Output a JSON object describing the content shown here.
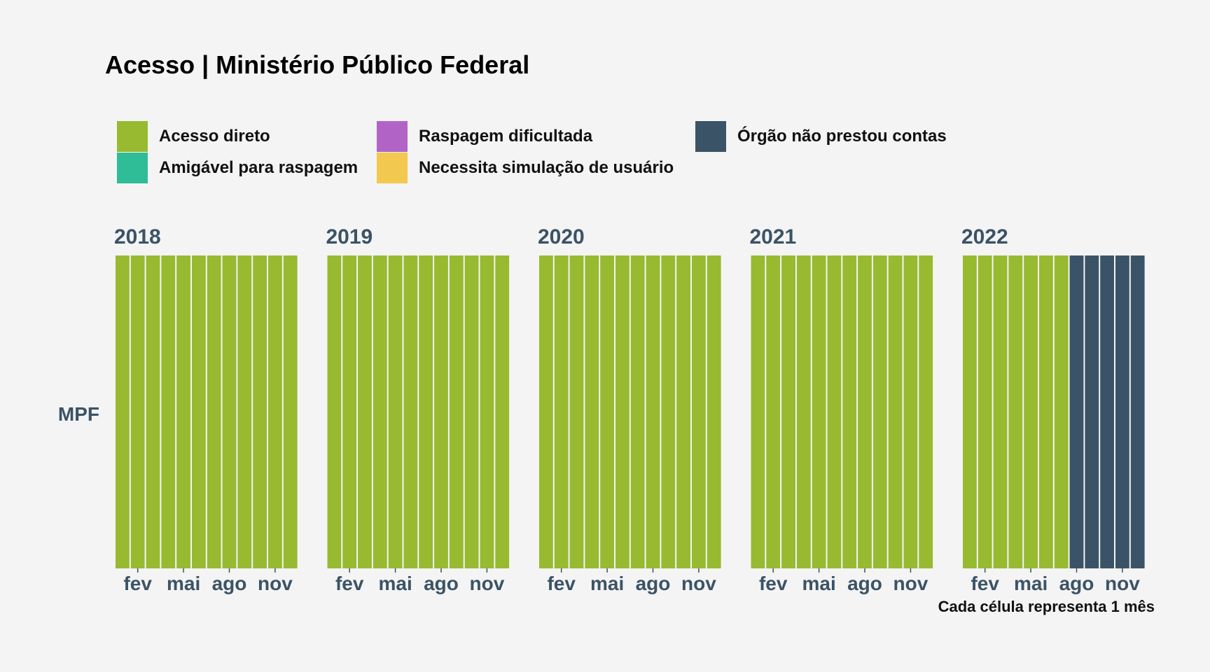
{
  "title": "Acesso | Ministério Público Federal",
  "caption": "Cada célula representa 1 mês",
  "legend": [
    {
      "label": "Acesso direto",
      "color": "#97ba31"
    },
    {
      "label": "Amigável para raspagem",
      "color": "#2ebd96"
    },
    {
      "label": "Raspagem dificultada",
      "color": "#b264c6"
    },
    {
      "label": "Necessita simulação de usuário",
      "color": "#f2c84e"
    },
    {
      "label": "Órgão não prestou contas",
      "color": "#3b5366"
    }
  ],
  "chart_data": {
    "type": "heatmap",
    "row_label": "MPF",
    "facets": [
      {
        "year": "2018",
        "months": [
          "Acesso direto",
          "Acesso direto",
          "Acesso direto",
          "Acesso direto",
          "Acesso direto",
          "Acesso direto",
          "Acesso direto",
          "Acesso direto",
          "Acesso direto",
          "Acesso direto",
          "Acesso direto",
          "Acesso direto"
        ]
      },
      {
        "year": "2019",
        "months": [
          "Acesso direto",
          "Acesso direto",
          "Acesso direto",
          "Acesso direto",
          "Acesso direto",
          "Acesso direto",
          "Acesso direto",
          "Acesso direto",
          "Acesso direto",
          "Acesso direto",
          "Acesso direto",
          "Acesso direto"
        ]
      },
      {
        "year": "2020",
        "months": [
          "Acesso direto",
          "Acesso direto",
          "Acesso direto",
          "Acesso direto",
          "Acesso direto",
          "Acesso direto",
          "Acesso direto",
          "Acesso direto",
          "Acesso direto",
          "Acesso direto",
          "Acesso direto",
          "Acesso direto"
        ]
      },
      {
        "year": "2021",
        "months": [
          "Acesso direto",
          "Acesso direto",
          "Acesso direto",
          "Acesso direto",
          "Acesso direto",
          "Acesso direto",
          "Acesso direto",
          "Acesso direto",
          "Acesso direto",
          "Acesso direto",
          "Acesso direto",
          "Acesso direto"
        ]
      },
      {
        "year": "2022",
        "months": [
          "Acesso direto",
          "Acesso direto",
          "Acesso direto",
          "Acesso direto",
          "Acesso direto",
          "Acesso direto",
          "Acesso direto",
          "Órgão não prestou contas",
          "Órgão não prestou contas",
          "Órgão não prestou contas",
          "Órgão não prestou contas",
          "Órgão não prestou contas"
        ]
      }
    ],
    "x_ticks": [
      {
        "month_index": 2,
        "label": "fev"
      },
      {
        "month_index": 5,
        "label": "mai"
      },
      {
        "month_index": 8,
        "label": "ago"
      },
      {
        "month_index": 11,
        "label": "nov"
      }
    ],
    "months_per_year": 12,
    "grid": false
  }
}
